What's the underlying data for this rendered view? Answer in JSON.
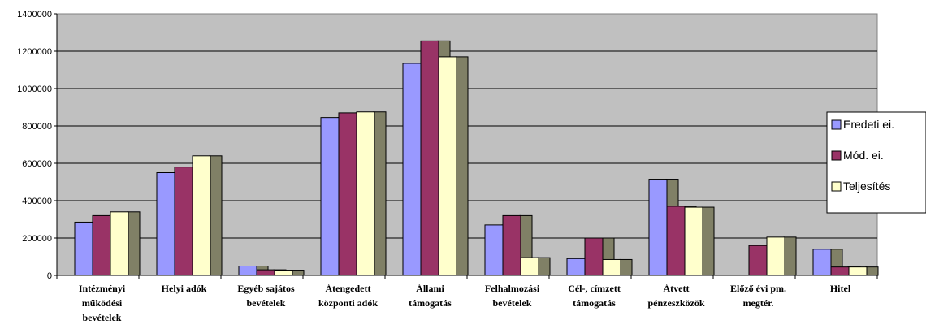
{
  "chart_data": {
    "type": "bar",
    "categories": [
      [
        "Intézményi",
        "működési",
        "bevételek"
      ],
      [
        "Helyi adók"
      ],
      [
        "Egyéb sajátos",
        "bevételek"
      ],
      [
        "Átengedett",
        "központi adók"
      ],
      [
        "Állami",
        "támogatás"
      ],
      [
        "Felhalmozási",
        "bevételek"
      ],
      [
        "Cél-, címzett",
        "támogatás"
      ],
      [
        "Átvett",
        "pénzeszközök"
      ],
      [
        "Előző évi pm.",
        "megtér."
      ],
      [
        "Hitel"
      ]
    ],
    "series": [
      {
        "name": "Eredeti ei.",
        "color": "#9999ff",
        "values": [
          285000,
          550000,
          50000,
          845000,
          1135000,
          270000,
          90000,
          515000,
          0,
          140000
        ]
      },
      {
        "name": "Mód. ei.",
        "color": "#993366",
        "values": [
          320000,
          580000,
          30000,
          870000,
          1255000,
          320000,
          200000,
          370000,
          160000,
          45000
        ]
      },
      {
        "name": "Teljesítés",
        "color": "#ffffcc",
        "values": [
          340000,
          640000,
          28000,
          875000,
          1170000,
          95000,
          85000,
          365000,
          205000,
          45000
        ]
      }
    ],
    "ylim": [
      0,
      1400000
    ],
    "yticks": [
      "0",
      "200000",
      "400000",
      "600000",
      "800000",
      "1000000",
      "1200000",
      "1400000"
    ],
    "grid": true,
    "legend_position": "right",
    "plot_background": "#c0c0c0",
    "shadow_color": "#808066"
  }
}
